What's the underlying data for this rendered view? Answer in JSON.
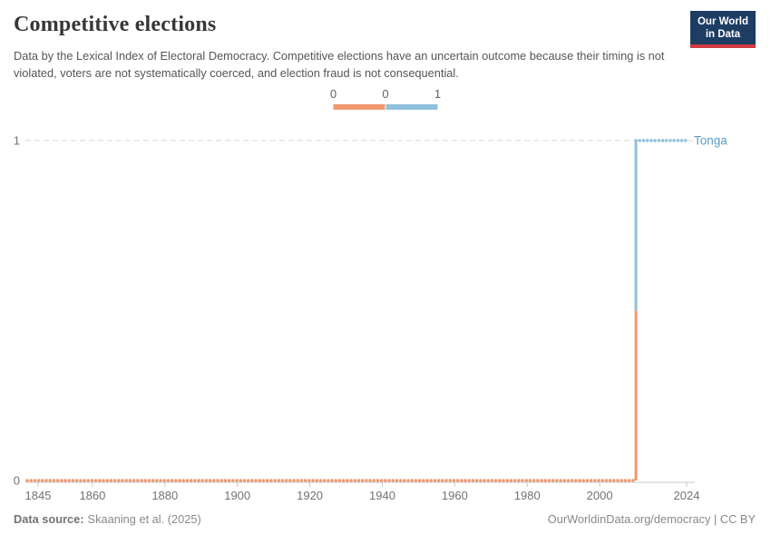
{
  "header": {
    "title": "Competitive elections",
    "subtitle": "Data by the Lexical Index of Electoral Democracy. Competitive elections have an uncertain outcome because their timing is not violated, voters are not systematically coerced, and election fraud is not consequential.",
    "logo": {
      "line1": "Our World",
      "line2": "in Data",
      "bg_color": "#1d3d63",
      "bar_color": "#d13a3f"
    }
  },
  "legend": {
    "labels": [
      "0",
      "0",
      "1"
    ],
    "segments": [
      {
        "value": "0",
        "color": "#f0986f"
      },
      {
        "value": "1",
        "color": "#8fc0dc"
      }
    ]
  },
  "chart_data": {
    "type": "line",
    "subtype": "step-line-with-yearly-dot-markers",
    "title": "Competitive elections",
    "entity": "Tonga",
    "entity_label_color": "#5d9bc2",
    "xlim": [
      1842,
      2024
    ],
    "ylim": [
      0,
      1
    ],
    "x_ticks": [
      "1845",
      "1860",
      "1880",
      "1900",
      "1920",
      "1940",
      "1960",
      "1980",
      "2000",
      "2024"
    ],
    "y_ticks": [
      "0",
      "1"
    ],
    "grid": "dashed horizontal gridline at y=1",
    "series": [
      {
        "name": "Tonga",
        "segments": [
          {
            "from_year": 1842,
            "to_year": 2010,
            "value": 0,
            "color": "#f0986f"
          },
          {
            "from_year": 2010,
            "to_year": 2024,
            "value": 1,
            "color": "#8fc0dc"
          }
        ]
      }
    ]
  },
  "footer": {
    "source_label": "Data source:",
    "source_text": "Skaaning et al. (2025)",
    "credit_link": "OurWorldinData.org/democracy",
    "separator": " | ",
    "license": "CC BY"
  }
}
